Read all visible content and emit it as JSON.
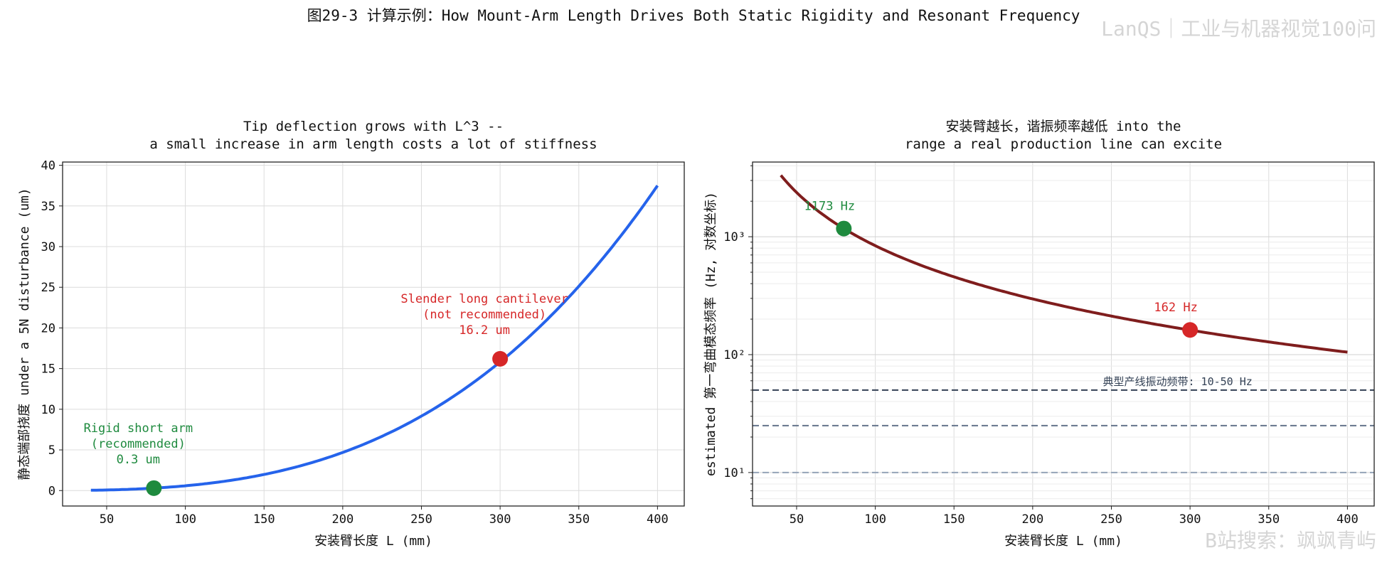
{
  "figure": {
    "suptitle": "图29-3  计算示例：How Mount-Arm Length Drives Both Static Rigidity and Resonant Frequency",
    "watermark_top": "LanQS｜工业与机器视觉100问",
    "watermark_bottom": "B站搜索：飒飒青屿"
  },
  "chart_data": [
    {
      "type": "line",
      "title": "Tip deflection grows with L^3 --\na small increase in arm length costs a lot of stiffness",
      "title_lines": [
        "Tip deflection grows with L^3 --",
        "a small increase in arm length costs a lot of stiffness"
      ],
      "xlabel": "安装臂长度 L (mm)",
      "ylabel": "静态端部挠度 under a 5N disturbance (um)",
      "xlim": [
        22,
        417
      ],
      "ylim": [
        -1.9,
        40.4
      ],
      "xticks": [
        50,
        100,
        150,
        200,
        250,
        300,
        350,
        400
      ],
      "yticks": [
        0,
        5,
        10,
        15,
        20,
        25,
        30,
        35,
        40
      ],
      "grid": true,
      "yscale": "linear",
      "series": [
        {
          "color": "#2563eb",
          "model": "cubic",
          "x_range": [
            40,
            400
          ],
          "coef": 0.0006
        }
      ],
      "points": [
        {
          "x": 80,
          "y": 0.3,
          "color": "#1e8a3e",
          "label_lines": [
            "Rigid short arm",
            "(recommended)",
            "0.3 um"
          ]
        },
        {
          "x": 300,
          "y": 16.2,
          "color": "#d62728",
          "label_lines": [
            "Slender long cantilever",
            "(not recommended)",
            "16.2 um"
          ]
        }
      ]
    },
    {
      "type": "line",
      "title": "安装臂越长，谐振频率越低 into the\nrange a real production line can excite",
      "title_lines": [
        "安装臂越长，谐振频率越低 into the",
        "range a real production line can excite"
      ],
      "xlabel": "安装臂长度 L (mm)",
      "ylabel": "estimated 第一弯曲模态频率 (Hz, 对数坐标)",
      "xlim": [
        22,
        417
      ],
      "ylim": [
        5.2,
        4300
      ],
      "yscale": "log",
      "xticks": [
        50,
        100,
        150,
        200,
        250,
        300,
        350,
        400
      ],
      "ytick_labels": [
        "10¹",
        "10²",
        "10³"
      ],
      "ytick_values": [
        10,
        100,
        1000
      ],
      "grid": true,
      "series": [
        {
          "color": "#7f1d1d",
          "model": "power",
          "x_range": [
            40,
            400
          ],
          "a": 1173,
          "x0": 80,
          "exponent": -1.5
        }
      ],
      "points": [
        {
          "x": 80,
          "y": 1173,
          "color": "#1e8a3e",
          "label": "1173 Hz"
        },
        {
          "x": 300,
          "y": 162,
          "color": "#d62728",
          "label": "162 Hz"
        }
      ],
      "hlines": [
        {
          "y": 50,
          "color": "#334155"
        },
        {
          "y": 25,
          "color": "#64748b"
        },
        {
          "y": 10,
          "color": "#94a3b8"
        }
      ],
      "band_label": "典型产线振动频带: 10-50 Hz"
    }
  ]
}
